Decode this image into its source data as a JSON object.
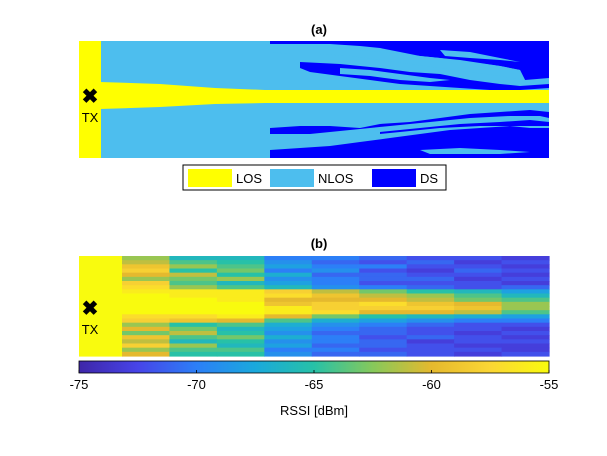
{
  "chart_data": [
    {
      "type": "heatmap",
      "title": "(a)",
      "marker": {
        "symbol": "✖",
        "label": "TX"
      },
      "colors": {
        "LOS": "#FFFF00",
        "NLOS": "#4DBEEE",
        "DS": "#0000FF"
      },
      "legend": {
        "placement": "bottom",
        "entries": [
          {
            "name": "LOS",
            "color": "#FFFF00"
          },
          {
            "name": "NLOS",
            "color": "#4DBEEE"
          },
          {
            "name": "DS",
            "color": "#0000FF"
          }
        ]
      },
      "classes": [
        "LOS",
        "NLOS",
        "DS"
      ]
    },
    {
      "type": "heatmap",
      "title": "(b)",
      "marker": {
        "symbol": "✖",
        "label": "TX"
      },
      "colorbar": {
        "label": "RSSI [dBm]",
        "range": [
          -75,
          -55
        ],
        "ticks": [
          "-75",
          "-70",
          "-65",
          "-60",
          "-55"
        ]
      },
      "grid_shape": {
        "rows": 24,
        "cols": 10
      },
      "values": [
        [
          -55,
          -62,
          -66,
          -66,
          -70,
          -70,
          -71,
          -72,
          -72,
          -73
        ],
        [
          -55,
          -61,
          -64,
          -65,
          -69,
          -71,
          -72,
          -71,
          -73,
          -72
        ],
        [
          -55,
          -59,
          -62,
          -64,
          -68,
          -70,
          -70,
          -72,
          -72,
          -73
        ],
        [
          -55,
          -58,
          -65,
          -63,
          -70,
          -69,
          -72,
          -73,
          -71,
          -72
        ],
        [
          -55,
          -60,
          -61,
          -65,
          -67,
          -71,
          -71,
          -72,
          -72,
          -73
        ],
        [
          -55,
          -62,
          -63,
          -62,
          -69,
          -70,
          -71,
          -71,
          -73,
          -72
        ],
        [
          -55,
          -58,
          -64,
          -66,
          -68,
          -70,
          -72,
          -72,
          -72,
          -73
        ],
        [
          -55,
          -57,
          -62,
          -64,
          -66,
          -69,
          -70,
          -71,
          -72,
          -71
        ],
        [
          -55,
          -56,
          -56,
          -56,
          -58,
          -61,
          -63,
          -65,
          -66,
          -68
        ],
        [
          -55,
          -55,
          -56,
          -56,
          -57,
          -59,
          -61,
          -62,
          -64,
          -66
        ],
        [
          -55,
          -55,
          -55,
          -56,
          -60,
          -60,
          -60,
          -61,
          -63,
          -64
        ],
        [
          -55,
          -55,
          -55,
          -55,
          -59,
          -58,
          -57,
          -59,
          -60,
          -62
        ],
        [
          -55,
          -55,
          -55,
          -55,
          -56,
          -58,
          -58,
          -58,
          -59,
          -62
        ],
        [
          -55,
          -55,
          -55,
          -55,
          -56,
          -57,
          -60,
          -60,
          -61,
          -64
        ],
        [
          -55,
          -57,
          -57,
          -56,
          -60,
          -63,
          -65,
          -66,
          -67,
          -68
        ],
        [
          -55,
          -58,
          -59,
          -60,
          -64,
          -67,
          -68,
          -69,
          -70,
          -70
        ],
        [
          -55,
          -62,
          -65,
          -64,
          -67,
          -69,
          -70,
          -71,
          -72,
          -72
        ],
        [
          -55,
          -60,
          -63,
          -66,
          -68,
          -70,
          -71,
          -72,
          -72,
          -73
        ],
        [
          -55,
          -63,
          -61,
          -65,
          -69,
          -71,
          -71,
          -72,
          -73,
          -72
        ],
        [
          -55,
          -59,
          -64,
          -63,
          -67,
          -70,
          -72,
          -71,
          -72,
          -73
        ],
        [
          -55,
          -61,
          -66,
          -65,
          -69,
          -70,
          -71,
          -73,
          -72,
          -72
        ],
        [
          -55,
          -58,
          -62,
          -66,
          -68,
          -71,
          -71,
          -72,
          -73,
          -73
        ],
        [
          -55,
          -62,
          -64,
          -64,
          -70,
          -70,
          -72,
          -72,
          -72,
          -73
        ],
        [
          -55,
          -60,
          -65,
          -65,
          -69,
          -71,
          -71,
          -72,
          -73,
          -72
        ]
      ]
    }
  ]
}
